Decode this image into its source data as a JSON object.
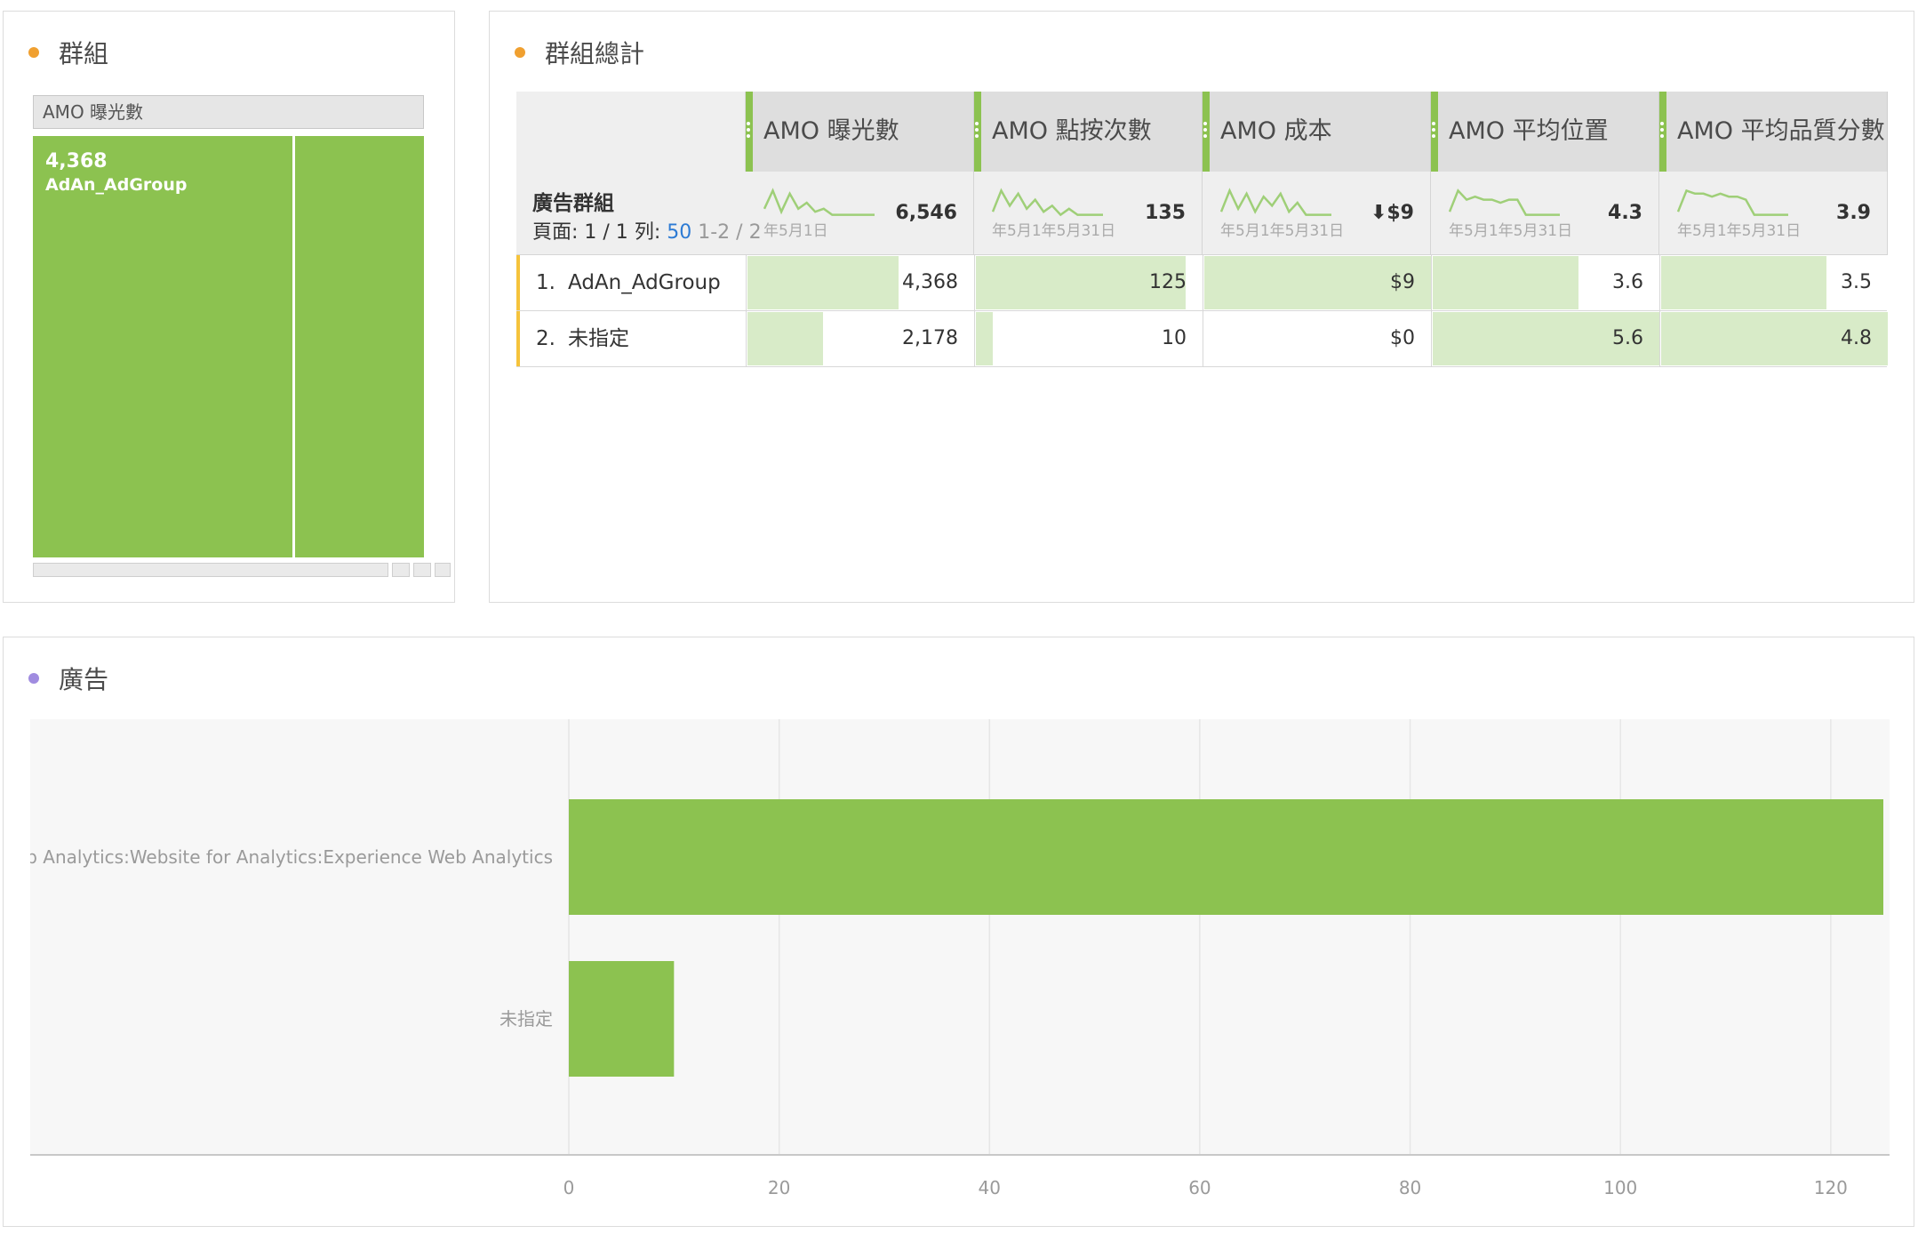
{
  "treemap_panel": {
    "title": "群組",
    "dot_color": "#f0a030",
    "header": "AMO 曝光數",
    "cells": [
      {
        "value_label": "4,368",
        "name": "AdAn_AdGroup",
        "value": 4368
      },
      {
        "value_label": "",
        "name": "",
        "value": 2178
      }
    ]
  },
  "table_panel": {
    "title": "群組總計",
    "dot_color": "#f0a030",
    "dimension_label": "廣告群組",
    "pager": {
      "page_text": "頁面: 1 / 1",
      "rows_text": "列:",
      "rows_value": "50",
      "range": "1-2 / 2"
    },
    "columns": [
      {
        "label": "AMO 曝光數",
        "total": "6,546",
        "date_text": "年5月1日",
        "spark": [
          0.3,
          0.9,
          0.2,
          0.8,
          0.3,
          0.5,
          0.2,
          0.3,
          0.1,
          0.1,
          0.1,
          0.1,
          0.1,
          0.1
        ]
      },
      {
        "label": "AMO 點按次數",
        "total": "135",
        "date_text": "年5月1年5月31日",
        "spark": [
          0.2,
          0.9,
          0.4,
          0.8,
          0.3,
          0.6,
          0.2,
          0.4,
          0.1,
          0.3,
          0.1,
          0.1,
          0.1,
          0.1
        ]
      },
      {
        "label": "AMO 成本",
        "total": "⬇$9",
        "date_text": "年5月1年5月31日",
        "spark": [
          0.2,
          0.9,
          0.3,
          0.8,
          0.2,
          0.7,
          0.4,
          0.8,
          0.2,
          0.5,
          0.1,
          0.1,
          0.1,
          0.1
        ]
      },
      {
        "label": "AMO 平均位置",
        "total": "4.3",
        "date_text": "年5月1年5月31日",
        "spark": [
          0.2,
          0.9,
          0.6,
          0.7,
          0.6,
          0.6,
          0.5,
          0.6,
          0.6,
          0.1,
          0.1,
          0.1,
          0.1,
          0.1
        ]
      },
      {
        "label": "AMO 平均品質分數",
        "total": "3.9",
        "date_text": "年5月1年5月31日",
        "spark": [
          0.2,
          0.9,
          0.8,
          0.8,
          0.7,
          0.8,
          0.7,
          0.7,
          0.6,
          0.1,
          0.1,
          0.1,
          0.1,
          0.1
        ]
      }
    ],
    "rows": [
      {
        "num": "1.",
        "label": "AdAn_AdGroup",
        "values": [
          "4,368",
          "125",
          "$9",
          "3.6",
          "3.5"
        ],
        "fractions": [
          0.667,
          0.926,
          1.0,
          0.643,
          0.729
        ]
      },
      {
        "num": "2.",
        "label": "未指定",
        "values": [
          "2,178",
          "10",
          "$0",
          "5.6",
          "4.8"
        ],
        "fractions": [
          0.333,
          0.074,
          0.0,
          1.0,
          1.0
        ]
      }
    ]
  },
  "bar_panel": {
    "title": "廣告",
    "dot_color": "#a08ce0",
    "bar_color": "#8cc250"
  },
  "chart_data": {
    "type": "bar",
    "orientation": "horizontal",
    "categories": [
      "Web Analytics:Website for Analytics:Experience Web Analytics",
      "未指定"
    ],
    "values": [
      125,
      10
    ],
    "xlim": [
      0,
      125
    ],
    "xticks": [
      0,
      20,
      40,
      60,
      80,
      100,
      120
    ],
    "grid": true
  }
}
